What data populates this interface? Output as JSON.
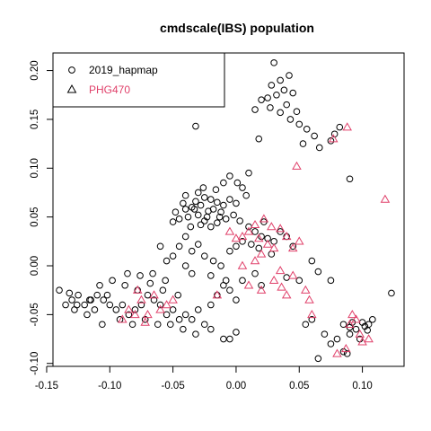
{
  "chart_data": {
    "type": "scatter",
    "title": "cmdscale(IBS) population",
    "xlabel": "",
    "ylabel": "",
    "xlim": [
      -0.145,
      0.133
    ],
    "ylim": [
      -0.103,
      0.218
    ],
    "x_ticks": [
      -0.15,
      -0.1,
      -0.05,
      0.0,
      0.05,
      0.1
    ],
    "x_tick_labels": [
      "-0.15",
      "-0.10",
      "-0.05",
      "0.00",
      "0.05",
      "0.10"
    ],
    "y_ticks": [
      -0.1,
      -0.05,
      0.0,
      0.05,
      0.1,
      0.15,
      0.2
    ],
    "y_tick_labels": [
      "-0.10",
      "-0.05",
      "0.00",
      "0.05",
      "0.10",
      "0.15",
      "0.20"
    ],
    "grid": false,
    "legend_position": "top-left",
    "series": [
      {
        "name": "2019_hapmap",
        "marker": "circle",
        "color": "#000000",
        "points": [
          [
            0.03,
            0.208
          ],
          [
            0.042,
            0.195
          ],
          [
            0.035,
            0.19
          ],
          [
            0.028,
            0.185
          ],
          [
            0.038,
            0.18
          ],
          [
            0.045,
            0.177
          ],
          [
            0.025,
            0.172
          ],
          [
            0.032,
            0.175
          ],
          [
            0.04,
            0.165
          ],
          [
            0.02,
            0.17
          ],
          [
            0.015,
            0.16
          ],
          [
            0.048,
            0.158
          ],
          [
            0.027,
            0.162
          ],
          [
            0.035,
            0.157
          ],
          [
            0.043,
            0.15
          ],
          [
            0.05,
            0.145
          ],
          [
            0.056,
            0.14
          ],
          [
            0.062,
            0.133
          ],
          [
            0.053,
            0.125
          ],
          [
            0.066,
            0.121
          ],
          [
            0.078,
            0.135
          ],
          [
            0.082,
            0.142
          ],
          [
            0.075,
            0.128
          ],
          [
            0.018,
            0.13
          ],
          [
            -0.032,
            0.143
          ],
          [
            0.09,
            0.089
          ],
          [
            0.005,
            0.08
          ],
          [
            0.01,
            0.095
          ],
          [
            0.001,
            0.085
          ],
          [
            0.008,
            0.072
          ],
          [
            -0.005,
            0.092
          ],
          [
            -0.01,
            0.085
          ],
          [
            -0.03,
            0.075
          ],
          [
            -0.025,
            0.07
          ],
          [
            -0.02,
            0.068
          ],
          [
            -0.015,
            0.065
          ],
          [
            -0.028,
            0.062
          ],
          [
            -0.035,
            0.06
          ],
          [
            -0.04,
            0.058
          ],
          [
            -0.022,
            0.056
          ],
          [
            -0.018,
            0.058
          ],
          [
            -0.012,
            0.055
          ],
          [
            -0.03,
            0.052
          ],
          [
            -0.038,
            0.05
          ],
          [
            -0.045,
            0.048
          ],
          [
            -0.025,
            0.046
          ],
          [
            -0.015,
            0.044
          ],
          [
            -0.008,
            0.048
          ],
          [
            -0.002,
            0.052
          ],
          [
            0.003,
            0.046
          ],
          [
            -0.032,
            0.066
          ],
          [
            -0.042,
            0.064
          ],
          [
            -0.048,
            0.055
          ],
          [
            -0.05,
            0.045
          ],
          [
            -0.036,
            0.04
          ],
          [
            -0.028,
            0.042
          ],
          [
            -0.02,
            0.04
          ],
          [
            -0.01,
            0.062
          ],
          [
            -0.005,
            0.068
          ],
          [
            0.0,
            0.064
          ],
          [
            -0.026,
            0.08
          ],
          [
            -0.016,
            0.078
          ],
          [
            -0.04,
            0.072
          ],
          [
            -0.033,
            0.058
          ],
          [
            -0.023,
            0.05
          ],
          [
            -0.013,
            0.05
          ],
          [
            0.01,
            0.04
          ],
          [
            0.015,
            0.035
          ],
          [
            0.02,
            0.03
          ],
          [
            0.025,
            0.028
          ],
          [
            0.03,
            0.025
          ],
          [
            0.012,
            0.022
          ],
          [
            0.018,
            0.018
          ],
          [
            0.005,
            0.025
          ],
          [
            0.0,
            0.02
          ],
          [
            -0.005,
            0.015
          ],
          [
            0.035,
            0.035
          ],
          [
            0.04,
            0.03
          ],
          [
            0.045,
            0.02
          ],
          [
            0.022,
            0.045
          ],
          [
            0.028,
            0.012
          ],
          [
            -0.04,
            0.03
          ],
          [
            -0.045,
            0.02
          ],
          [
            -0.035,
            0.015
          ],
          [
            -0.05,
            0.01
          ],
          [
            -0.03,
            0.022
          ],
          [
            -0.025,
            0.01
          ],
          [
            -0.055,
            0.005
          ],
          [
            -0.06,
            0.02
          ],
          [
            -0.018,
            0.005
          ],
          [
            -0.012,
            0.0
          ],
          [
            -0.04,
            0.0
          ],
          [
            -0.035,
            -0.008
          ],
          [
            -0.02,
            -0.01
          ],
          [
            0.015,
            -0.008
          ],
          [
            0.04,
            -0.012
          ],
          [
            0.06,
            0.005
          ],
          [
            0.05,
            -0.015
          ],
          [
            0.065,
            -0.006
          ],
          [
            0.075,
            -0.015
          ],
          [
            0.02,
            -0.02
          ],
          [
            0.005,
            -0.015
          ],
          [
            -0.008,
            -0.015
          ],
          [
            -0.01,
            -0.02
          ],
          [
            -0.005,
            -0.025
          ],
          [
            0.0,
            -0.035
          ],
          [
            -0.015,
            -0.03
          ],
          [
            -0.02,
            -0.04
          ],
          [
            -0.03,
            -0.045
          ],
          [
            -0.04,
            -0.05
          ],
          [
            -0.05,
            -0.045
          ],
          [
            -0.055,
            -0.05
          ],
          [
            -0.045,
            -0.055
          ],
          [
            -0.035,
            -0.055
          ],
          [
            -0.025,
            -0.06
          ],
          [
            -0.06,
            -0.04
          ],
          [
            -0.065,
            -0.035
          ],
          [
            -0.07,
            -0.03
          ],
          [
            -0.075,
            -0.04
          ],
          [
            -0.08,
            -0.045
          ],
          [
            -0.085,
            -0.05
          ],
          [
            -0.09,
            -0.04
          ],
          [
            -0.095,
            -0.045
          ],
          [
            -0.1,
            -0.04
          ],
          [
            -0.105,
            -0.035
          ],
          [
            -0.11,
            -0.03
          ],
          [
            -0.115,
            -0.035
          ],
          [
            -0.12,
            -0.04
          ],
          [
            -0.125,
            -0.03
          ],
          [
            -0.13,
            -0.035
          ],
          [
            -0.135,
            -0.04
          ],
          [
            -0.14,
            -0.025
          ],
          [
            -0.128,
            -0.045
          ],
          [
            -0.118,
            -0.05
          ],
          [
            -0.108,
            -0.02
          ],
          [
            -0.098,
            -0.015
          ],
          [
            -0.088,
            -0.02
          ],
          [
            -0.078,
            -0.025
          ],
          [
            -0.068,
            -0.018
          ],
          [
            -0.058,
            -0.025
          ],
          [
            -0.112,
            -0.045
          ],
          [
            -0.102,
            -0.03
          ],
          [
            -0.092,
            -0.055
          ],
          [
            -0.082,
            -0.06
          ],
          [
            -0.072,
            -0.055
          ],
          [
            -0.062,
            -0.06
          ],
          [
            -0.052,
            -0.06
          ],
          [
            -0.042,
            -0.065
          ],
          [
            -0.032,
            -0.07
          ],
          [
            -0.02,
            -0.065
          ],
          [
            -0.01,
            -0.075
          ],
          [
            -0.005,
            -0.075
          ],
          [
            0.0,
            -0.068
          ],
          [
            -0.046,
            -0.03
          ],
          [
            -0.056,
            -0.015
          ],
          [
            -0.066,
            -0.008
          ],
          [
            -0.076,
            -0.01
          ],
          [
            -0.086,
            -0.008
          ],
          [
            -0.106,
            -0.06
          ],
          [
            -0.116,
            -0.035
          ],
          [
            -0.126,
            -0.04
          ],
          [
            -0.132,
            -0.028
          ],
          [
            0.055,
            -0.06
          ],
          [
            0.065,
            -0.095
          ],
          [
            0.075,
            -0.08
          ],
          [
            0.085,
            -0.06
          ],
          [
            0.085,
            -0.088
          ],
          [
            0.09,
            -0.07
          ],
          [
            0.095,
            -0.065
          ],
          [
            0.1,
            -0.058
          ],
          [
            0.098,
            -0.075
          ],
          [
            0.092,
            -0.058
          ],
          [
            0.102,
            -0.062
          ],
          [
            0.105,
            -0.06
          ],
          [
            0.108,
            -0.055
          ],
          [
            0.088,
            -0.09
          ],
          [
            0.08,
            -0.075
          ],
          [
            0.07,
            -0.07
          ],
          [
            0.06,
            -0.055
          ],
          [
            0.123,
            -0.028
          ],
          [
            0.09,
            -0.063
          ],
          [
            0.104,
            -0.066
          ]
        ]
      },
      {
        "name": "PHG470",
        "marker": "triangle",
        "color": "#e0406a",
        "points": [
          [
            0.088,
            0.142
          ],
          [
            0.077,
            0.13
          ],
          [
            0.048,
            0.102
          ],
          [
            0.118,
            0.068
          ],
          [
            0.022,
            0.048
          ],
          [
            0.028,
            0.04
          ],
          [
            0.035,
            0.038
          ],
          [
            0.04,
            0.03
          ],
          [
            0.015,
            0.042
          ],
          [
            0.01,
            0.035
          ],
          [
            0.005,
            0.03
          ],
          [
            0.0,
            0.028
          ],
          [
            -0.005,
            0.035
          ],
          [
            0.018,
            0.028
          ],
          [
            0.025,
            0.022
          ],
          [
            0.03,
            0.018
          ],
          [
            0.02,
            0.012
          ],
          [
            0.045,
            0.018
          ],
          [
            0.05,
            0.025
          ],
          [
            0.015,
            0.005
          ],
          [
            0.005,
            0.0
          ],
          [
            0.035,
            -0.005
          ],
          [
            0.045,
            -0.01
          ],
          [
            0.03,
            -0.015
          ],
          [
            0.01,
            -0.02
          ],
          [
            0.02,
            -0.025
          ],
          [
            0.04,
            -0.03
          ],
          [
            0.055,
            -0.025
          ],
          [
            0.058,
            -0.035
          ],
          [
            0.06,
            -0.05
          ],
          [
            0.036,
            -0.022
          ],
          [
            -0.015,
            -0.03
          ],
          [
            -0.05,
            -0.035
          ],
          [
            -0.055,
            -0.04
          ],
          [
            -0.06,
            -0.045
          ],
          [
            -0.07,
            -0.05
          ],
          [
            -0.072,
            -0.058
          ],
          [
            -0.08,
            -0.05
          ],
          [
            -0.085,
            -0.045
          ],
          [
            -0.09,
            -0.055
          ],
          [
            -0.065,
            -0.03
          ],
          [
            -0.075,
            -0.035
          ],
          [
            -0.078,
            -0.025
          ],
          [
            0.092,
            -0.05
          ],
          [
            0.095,
            -0.055
          ],
          [
            0.098,
            -0.07
          ],
          [
            0.1,
            -0.078
          ],
          [
            0.105,
            -0.075
          ],
          [
            0.087,
            -0.085
          ],
          [
            0.08,
            -0.09
          ],
          [
            0.09,
            -0.06
          ]
        ]
      }
    ]
  }
}
